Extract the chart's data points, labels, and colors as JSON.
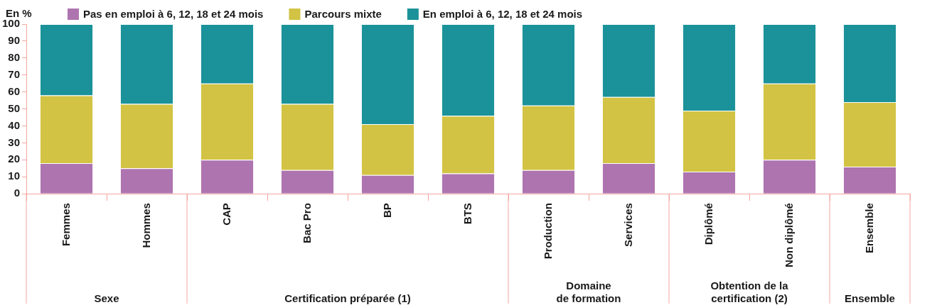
{
  "chart_data": {
    "type": "bar",
    "stacked": true,
    "ylabel": "En %",
    "legend": "top left",
    "grid": false,
    "categories": [
      "Femmes",
      "Hommes",
      "CAP",
      "Bac Pro",
      "BP",
      "BTS",
      "Production",
      "Services",
      "Diplômé",
      "Non diplômé",
      "Ensemble"
    ],
    "ylim": [
      0,
      100
    ],
    "yticks": [
      0,
      10,
      20,
      30,
      40,
      50,
      60,
      70,
      80,
      90,
      100
    ],
    "series": [
      {
        "name": "Pas en emploi à 6, 12, 18 et 24 mois",
        "color": "#ae74b0",
        "values": [
          18,
          15,
          20,
          14,
          11,
          12,
          14,
          18,
          13,
          20,
          16
        ]
      },
      {
        "name": "Parcours mixte",
        "color": "#d2c344",
        "values": [
          40,
          38,
          45,
          39,
          30,
          34,
          38,
          39,
          36,
          45,
          38
        ]
      },
      {
        "name": "En emploi à 6, 12, 18 et 24 mois",
        "color": "#1b9299",
        "values": [
          42,
          47,
          35,
          47,
          59,
          54,
          48,
          43,
          51,
          35,
          46
        ]
      }
    ],
    "annotations": [
      "Sexe",
      "Certification préparée (1)",
      "Domaine\nde formation",
      "Obtention de la\ncertification (2)",
      "Ensemble"
    ]
  }
}
